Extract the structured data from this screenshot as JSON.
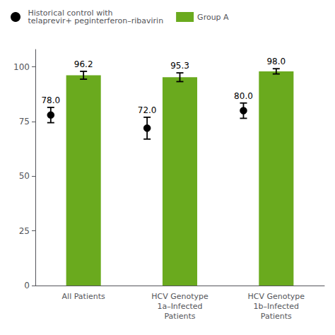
{
  "chart_data": {
    "type": "bar",
    "categories": [
      "All Patients",
      "HCV Genotype\n1a–Infected\nPatients",
      "HCV Genotype\n1b–Infected\nPatients"
    ],
    "series": [
      {
        "name": "Historical control with\ntelaprevir+ peginterferon–ribavirin",
        "type": "scatter",
        "color": "#000000",
        "marker": "circle",
        "values": [
          78.0,
          72.0,
          80.0
        ],
        "value_labels": [
          "78.0",
          "72.0",
          "80.0"
        ],
        "errors_low": [
          3.5,
          5.0,
          3.5
        ],
        "errors_high": [
          3.5,
          5.0,
          3.5
        ]
      },
      {
        "name": "Group A",
        "type": "bar",
        "color": "#6aaa1e",
        "values": [
          96.2,
          95.3,
          98.0
        ],
        "value_labels": [
          "96.2",
          "95.3",
          "98.0"
        ],
        "errors": [
          1.8,
          2.0,
          1.2
        ]
      }
    ],
    "ylim": [
      0,
      108
    ],
    "yticks": [
      0,
      25,
      50,
      75,
      100
    ],
    "grid": false,
    "legend": "upper left",
    "data_labels": true
  }
}
